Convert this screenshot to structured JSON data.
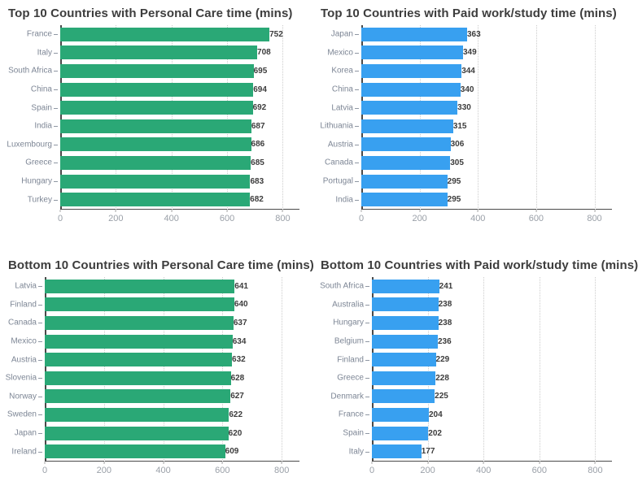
{
  "page": {
    "background": "#ffffff"
  },
  "chart_data": [
    {
      "type": "bar",
      "orientation": "horizontal",
      "title": "Top 10 Countries with Personal Care time (mins)",
      "categories": [
        "France",
        "Italy",
        "South Africa",
        "China",
        "Spain",
        "India",
        "Luxembourg",
        "Greece",
        "Hungary",
        "Turkey"
      ],
      "values": [
        752,
        708,
        695,
        694,
        692,
        687,
        686,
        685,
        683,
        682
      ],
      "bar_color": "#2aa876",
      "x_ticks": [
        0,
        200,
        400,
        600,
        800
      ],
      "x_max": 860,
      "grid": "dotted-vertical",
      "value_labels": "end-of-bar"
    },
    {
      "type": "bar",
      "orientation": "horizontal",
      "title": "Top 10 Countries with Paid work/study time (mins)",
      "categories": [
        "Japan",
        "Mexico",
        "Korea",
        "China",
        "Latvia",
        "Lithuania",
        "Austria",
        "Canada",
        "Portugal",
        "India"
      ],
      "values": [
        363,
        349,
        344,
        340,
        330,
        315,
        306,
        305,
        295,
        295
      ],
      "bar_color": "#38a0f0",
      "x_ticks": [
        0,
        200,
        400,
        600,
        800
      ],
      "x_max": 860,
      "grid": "dotted-vertical",
      "value_labels": "end-of-bar"
    },
    {
      "type": "bar",
      "orientation": "horizontal",
      "title": "Bottom 10 Countries with Personal Care time (mins)",
      "categories": [
        "Latvia",
        "Finland",
        "Canada",
        "Mexico",
        "Austria",
        "Slovenia",
        "Norway",
        "Sweden",
        "Japan",
        "Ireland"
      ],
      "values": [
        641,
        640,
        637,
        634,
        632,
        628,
        627,
        622,
        620,
        609
      ],
      "bar_color": "#2aa876",
      "x_ticks": [
        0,
        200,
        400,
        600,
        800
      ],
      "x_max": 860,
      "grid": "dotted-vertical",
      "value_labels": "end-of-bar"
    },
    {
      "type": "bar",
      "orientation": "horizontal",
      "title": "Bottom 10 Countries with Paid work/study time (mins)",
      "categories": [
        "South Africa",
        "Australia",
        "Hungary",
        "Belgium",
        "Finland",
        "Greece",
        "Denmark",
        "France",
        "Spain",
        "Italy"
      ],
      "values": [
        241,
        238,
        238,
        236,
        229,
        228,
        225,
        204,
        202,
        177
      ],
      "bar_color": "#38a0f0",
      "x_ticks": [
        0,
        200,
        400,
        600,
        800
      ],
      "x_max": 860,
      "grid": "dotted-vertical",
      "value_labels": "end-of-bar"
    }
  ],
  "colors": {
    "personal_care_green": "#2aa876",
    "paid_work_blue": "#38a0f0",
    "title_text": "#3d3d3d",
    "category_label": "#7d8695",
    "value_label": "#3c3c3c",
    "axis_line": "#4a4a4a",
    "tick_label": "#9aa0a8",
    "gridline": "#cccccc"
  }
}
